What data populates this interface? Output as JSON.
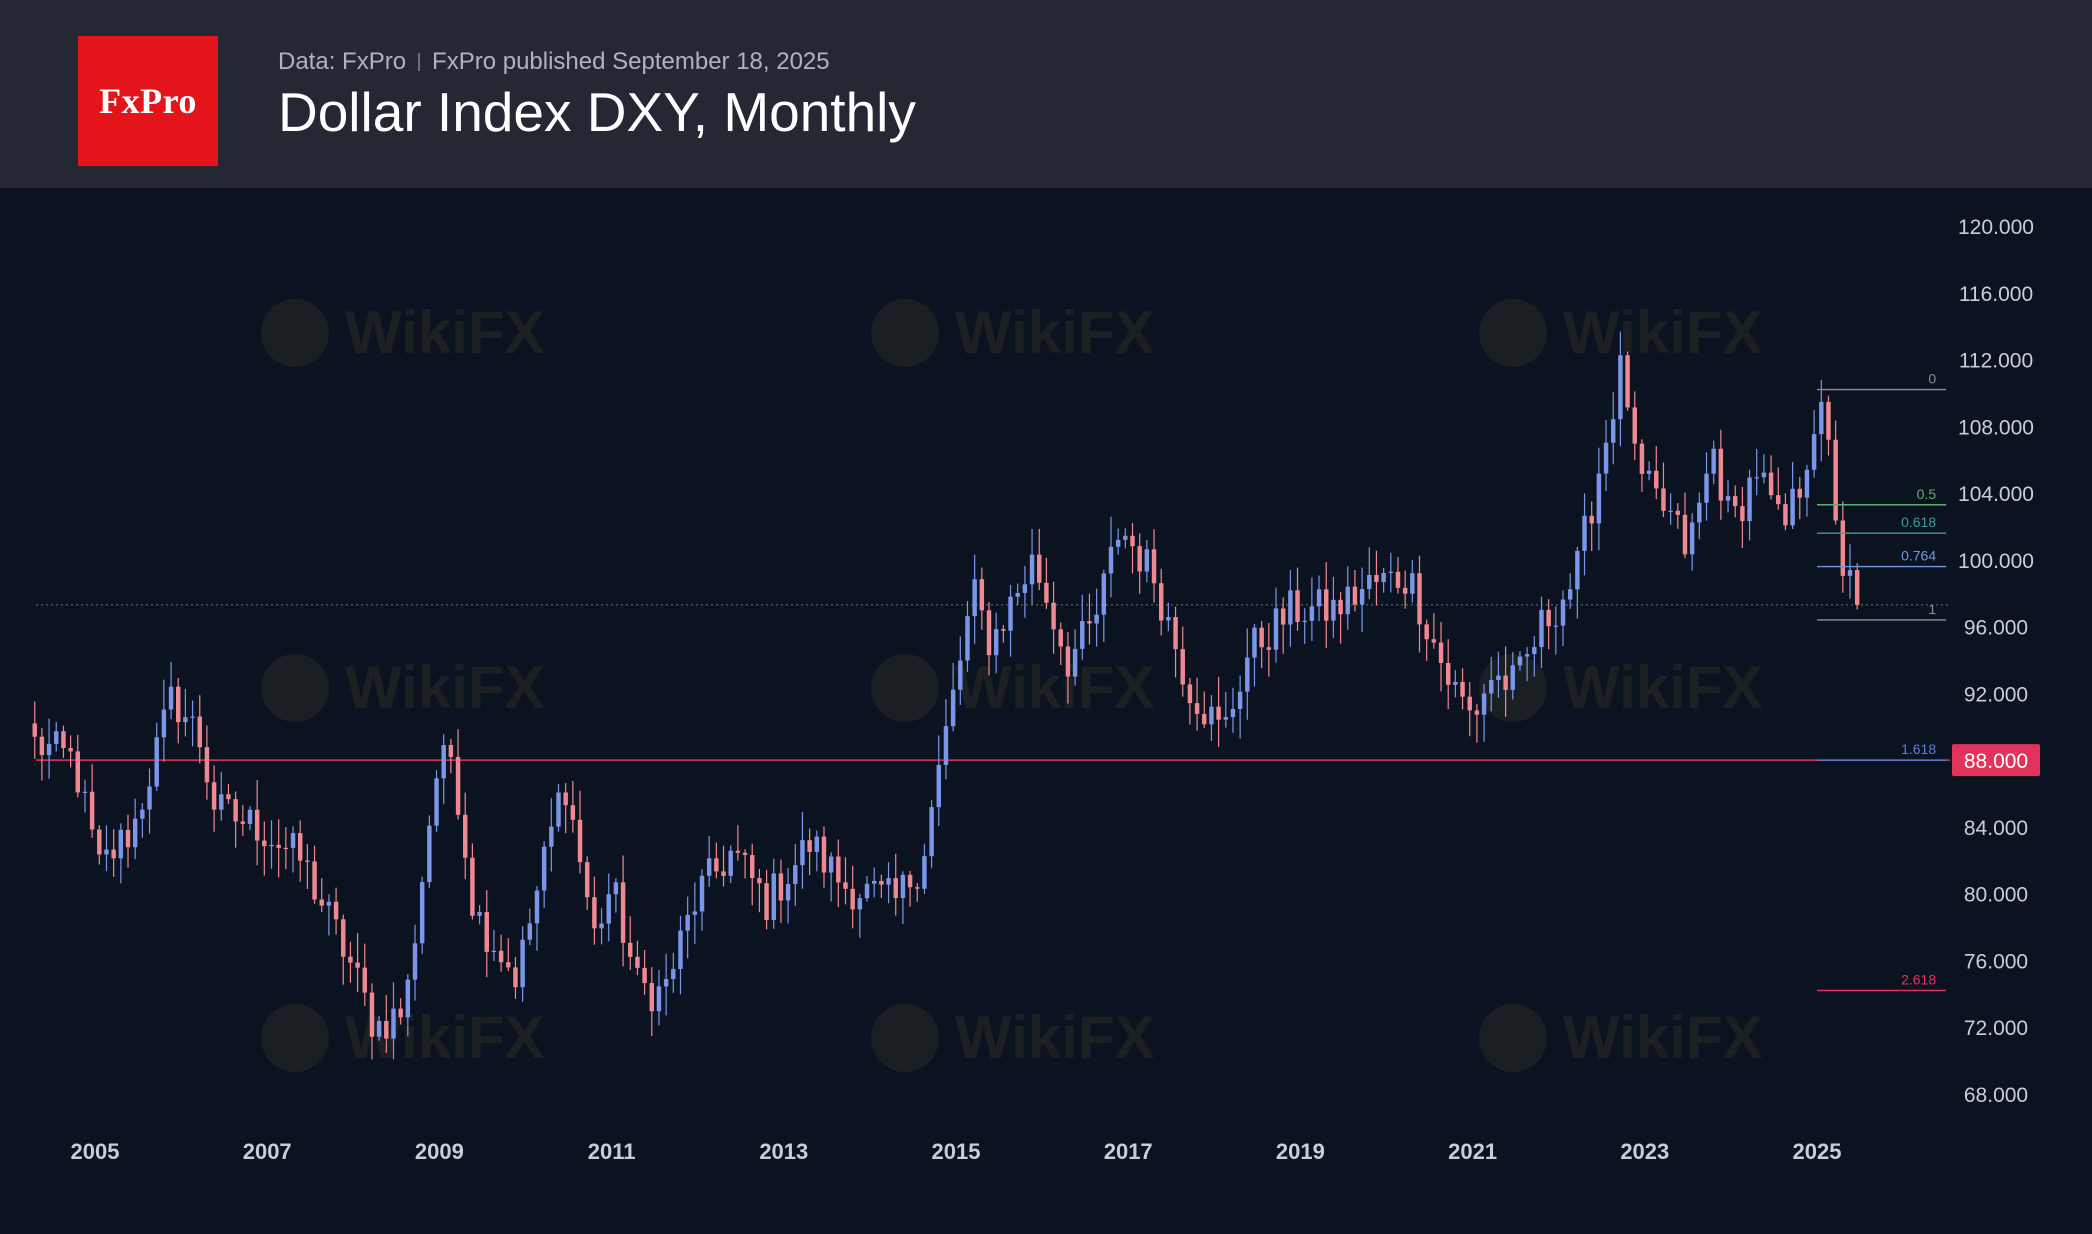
{
  "header": {
    "logo_text": "FxPro",
    "source": "Data: FxPro",
    "published": "FxPro published September 18, 2025",
    "title": "Dollar Index DXY, Monthly"
  },
  "watermark": "WikiFX",
  "colors": {
    "up": "#7b96e8",
    "down": "#f08892",
    "header_bg": "#252832",
    "plot_bg": "#0c1320",
    "logo_bg": "#e3151a",
    "highlight_line": "#e2335b"
  },
  "chart_data": {
    "type": "candlestick",
    "title": "Dollar Index DXY, Monthly",
    "ylim": [
      66,
      121
    ],
    "y_ticks": [
      "120.000",
      "116.000",
      "112.000",
      "108.000",
      "104.000",
      "100.000",
      "96.000",
      "92.000",
      "88.000",
      "84.000",
      "80.000",
      "76.000",
      "72.000",
      "68.000"
    ],
    "x_ticks": [
      "2005",
      "2007",
      "2009",
      "2011",
      "2013",
      "2015",
      "2017",
      "2019",
      "2021",
      "2023",
      "2025"
    ],
    "xlim": [
      2004.3,
      2026.6
    ],
    "current_price_line": {
      "value": 97.3,
      "style": "dotted"
    },
    "highlight_level": {
      "value": 88.0,
      "label": "88.000"
    },
    "fibonacci": {
      "x_start": 2025.0,
      "x_end": 2026.5,
      "levels": [
        {
          "ratio": "0",
          "value": 110.2,
          "color": "#8a8f99"
        },
        {
          "ratio": "0.5",
          "value": 103.3,
          "color": "#5fae6e"
        },
        {
          "ratio": "0.618",
          "value": 101.6,
          "color": "#3a9e9a"
        },
        {
          "ratio": "0.764",
          "value": 99.6,
          "color": "#6f98df"
        },
        {
          "ratio": "1",
          "value": 96.4,
          "color": "#8a8f99"
        },
        {
          "ratio": "1.618",
          "value": 88.0,
          "color": "#5b7fd8"
        },
        {
          "ratio": "2.618",
          "value": 74.2,
          "color": "#e2335b"
        }
      ]
    },
    "anchors": [
      [
        2004.3,
        89.0
      ],
      [
        2004.75,
        88.0
      ],
      [
        2005.05,
        81.5
      ],
      [
        2005.45,
        84.0
      ],
      [
        2005.9,
        91.8
      ],
      [
        2006.2,
        89.5
      ],
      [
        2006.4,
        85.0
      ],
      [
        2006.9,
        84.0
      ],
      [
        2007.4,
        82.0
      ],
      [
        2007.95,
        76.0
      ],
      [
        2008.25,
        72.0
      ],
      [
        2008.6,
        73.0
      ],
      [
        2008.95,
        87.0
      ],
      [
        2009.15,
        88.5
      ],
      [
        2009.4,
        79.0
      ],
      [
        2009.9,
        75.0
      ],
      [
        2010.45,
        87.0
      ],
      [
        2010.8,
        77.5
      ],
      [
        2011.0,
        80.5
      ],
      [
        2011.3,
        74.5
      ],
      [
        2011.6,
        74.0
      ],
      [
        2012.0,
        80.0
      ],
      [
        2012.4,
        82.5
      ],
      [
        2012.8,
        79.5
      ],
      [
        2013.3,
        83.0
      ],
      [
        2013.7,
        80.5
      ],
      [
        2014.3,
        79.5
      ],
      [
        2014.6,
        82.0
      ],
      [
        2015.2,
        98.0
      ],
      [
        2015.4,
        95.0
      ],
      [
        2015.9,
        100.0
      ],
      [
        2016.3,
        94.0
      ],
      [
        2016.6,
        96.0
      ],
      [
        2016.9,
        102.0
      ],
      [
        2017.3,
        99.0
      ],
      [
        2017.7,
        92.5
      ],
      [
        2018.1,
        89.5
      ],
      [
        2018.4,
        94.5
      ],
      [
        2018.9,
        97.0
      ],
      [
        2019.4,
        97.0
      ],
      [
        2019.8,
        98.5
      ],
      [
        2020.2,
        99.0
      ],
      [
        2020.3,
        98.5
      ],
      [
        2020.7,
        93.0
      ],
      [
        2021.0,
        90.5
      ],
      [
        2021.2,
        93.0
      ],
      [
        2021.5,
        92.5
      ],
      [
        2021.8,
        96.0
      ],
      [
        2022.2,
        99.0
      ],
      [
        2022.45,
        105.0
      ],
      [
        2022.75,
        112.0
      ],
      [
        2022.9,
        105.0
      ],
      [
        2023.3,
        102.5
      ],
      [
        2023.5,
        100.5
      ],
      [
        2023.8,
        106.5
      ],
      [
        2024.0,
        102.0
      ],
      [
        2024.3,
        105.5
      ],
      [
        2024.6,
        101.5
      ],
      [
        2024.8,
        104.5
      ],
      [
        2025.0,
        109.0
      ],
      [
        2025.1,
        107.8
      ],
      [
        2025.3,
        99.5
      ],
      [
        2025.5,
        97.0
      ],
      [
        2025.6,
        98.0
      ],
      [
        2025.7,
        97.2
      ]
    ],
    "candle_count": 255
  }
}
